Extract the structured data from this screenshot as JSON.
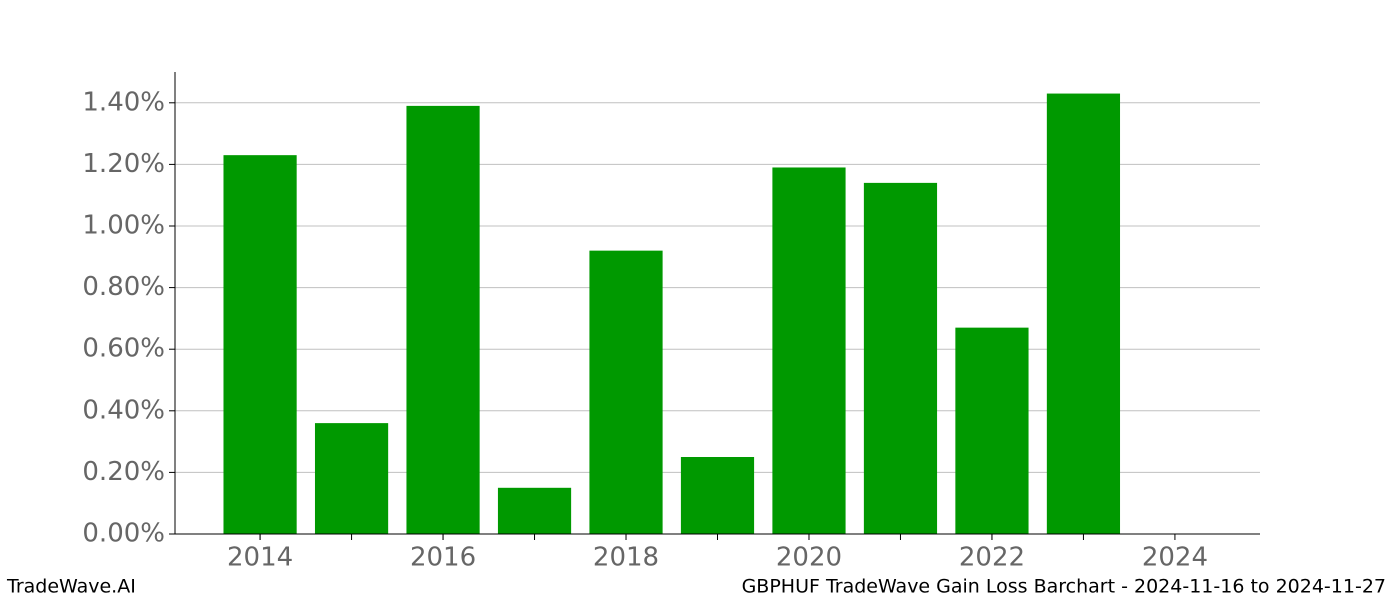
{
  "chart_data": {
    "type": "bar",
    "title": "GBPHUF TradeWave Gain Loss Barchart - 2024-11-16 to 2024-11-27",
    "source": "TradeWave.AI",
    "x": [
      2014,
      2015,
      2016,
      2017,
      2018,
      2019,
      2020,
      2021,
      2022,
      2023
    ],
    "values": [
      1.23,
      0.36,
      1.39,
      0.15,
      0.92,
      0.25,
      1.19,
      1.14,
      0.67,
      1.43
    ],
    "color": "#009900",
    "xlim": [
      2013.07,
      2024.93
    ],
    "xticks": [
      2014,
      2016,
      2018,
      2020,
      2022,
      2024
    ],
    "ylim": [
      0,
      1.5
    ],
    "yticks": [
      {
        "value": 0,
        "label": "0.00%"
      },
      {
        "value": 0.2,
        "label": "0.20%"
      },
      {
        "value": 0.4,
        "label": "0.40%"
      },
      {
        "value": 0.6,
        "label": "0.60%"
      },
      {
        "value": 0.8,
        "label": "0.80%"
      },
      {
        "value": 1.0,
        "label": "1.00%"
      },
      {
        "value": 1.2,
        "label": "1.20%"
      },
      {
        "value": 1.4,
        "label": "1.40%"
      }
    ],
    "grid": true
  }
}
